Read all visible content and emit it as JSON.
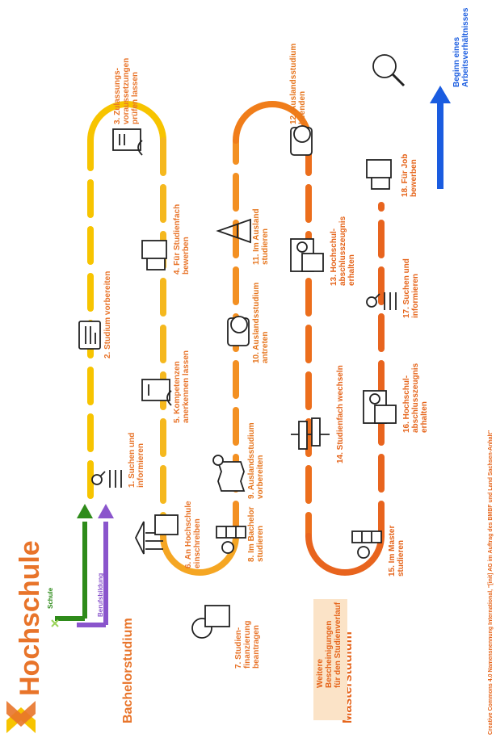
{
  "title": "Hochschule",
  "sections": {
    "bachelor": "Bachelorstudium",
    "master": "Masterstudium"
  },
  "entry_legend": {
    "school": "Schule",
    "vocational": "Berufsbildung",
    "school_color": "#2e8b1a",
    "vocational_color": "#8a55cc"
  },
  "steps": [
    {
      "label": "1. Suchen und\ninformieren",
      "icon": "search-list-icon"
    },
    {
      "label": "2. Studium vorbereiten",
      "icon": "checklist-icon"
    },
    {
      "label": "3. Zulassungs-\nvoraussetzungen\nprüfen lassen",
      "icon": "hand-document-icon"
    },
    {
      "label": "4. Für Studienfach\nbewerben",
      "icon": "application-icon"
    },
    {
      "label": "5. Kompetenzen\nanerkennen lassen",
      "icon": "hand-document-icon"
    },
    {
      "label": "6. An Hochschule\neinschreiben",
      "icon": "university-xml-icon"
    },
    {
      "label": "7. Studien-\nfinanzierung\nbeantragen",
      "icon": "euro-xml-icon"
    },
    {
      "label": "8. Im Bachelor\nstudieren",
      "icon": "apple-books-icon"
    },
    {
      "label": "9. Auslandsstudium\nvorbereiten",
      "icon": "map-xml-icon"
    },
    {
      "label": "10. Auslandsstudium\nantreten",
      "icon": "luggage-globe-icon"
    },
    {
      "label": "11. Im Ausland\nstudieren",
      "icon": "eiffel-tower-icon"
    },
    {
      "label": "12. Auslandsstudium\nbeenden",
      "icon": "luggage-globe-icon"
    },
    {
      "label": "13. Hochschul-\nabschlusszeugnis\nerhalten",
      "icon": "certificate-xml-icon"
    },
    {
      "label": "14. Studienfach wechseln",
      "icon": "signpost-icon"
    },
    {
      "label": "15. Im Master\nstudieren",
      "icon": "apple-books-icon"
    },
    {
      "label": "16. Hochschul-\nabschlusszeugnis\nerhalten",
      "icon": "certificate-xml-icon"
    },
    {
      "label": "17. Suchen und\ninformieren",
      "icon": "search-list-icon"
    },
    {
      "label": "18. Für Job\nbewerben",
      "icon": "application-icon"
    },
    {
      "label": "Beginn eines\nArbeitsverhältnisses",
      "icon": "magnifier-icon"
    }
  ],
  "legend": {
    "text": "Weitere Bescheinigungen\nfür den Studienverlauf",
    "icon": "xml-document-icon"
  },
  "credit": "Creative Commons 4.0 Namensnennung International, \"[init] AG im Auftrag des BMBF und Land Sachsen-Anhalt\"",
  "colors": {
    "yellow": "#f7c400",
    "orange": "#f5a623",
    "dark_orange": "#f07d1a",
    "deep_orange": "#e8641e",
    "blue": "#1a5ce0",
    "text_orange": "#e8742a"
  }
}
